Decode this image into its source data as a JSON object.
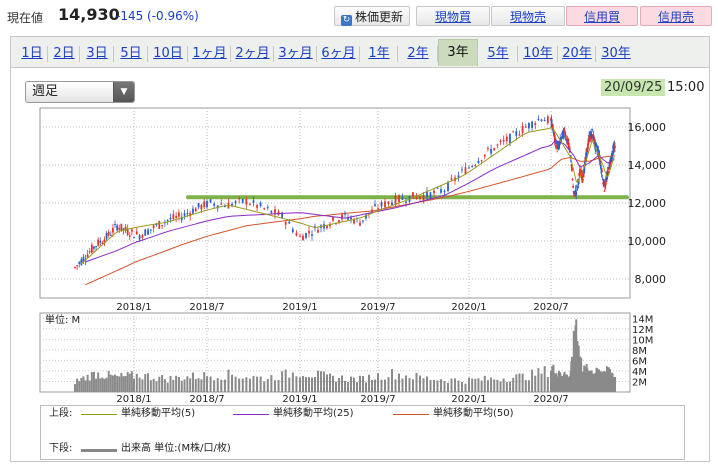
{
  "quote": {
    "price_label": "現在値",
    "price": "14,930",
    "change": "-145 (-0.96%)"
  },
  "buttons": {
    "update": "株価更新",
    "spot_buy": "現物買",
    "spot_sell": "現物売",
    "margin_buy": "信用買",
    "margin_sell": "信用売"
  },
  "period_tabs": [
    "1日",
    "2日",
    "3日",
    "5日",
    "10日",
    "1ヶ月",
    "2ヶ月",
    "3ヶ月",
    "6ヶ月",
    "1年",
    "2年",
    "3年",
    "5年",
    "10年",
    "20年",
    "30年"
  ],
  "active_tab": "3年",
  "interval_select": "週足",
  "timestamp": {
    "date": "20/09/25",
    "time": "15:00"
  },
  "colors": {
    "candle_up": "#e0342c",
    "candle_down": "#2a5fc8",
    "ma5": "#9a9a1a",
    "ma25": "#8a2bc8",
    "ma50": "#d0552a",
    "volume": "#8a8a8a",
    "support_line": "#7fb24a"
  },
  "chart_data": {
    "type": "candlestick",
    "x_tick_labels": [
      "2018/1",
      "2018/7",
      "2019/1",
      "2019/7",
      "2020/1",
      "2020/7"
    ],
    "price_axis": {
      "ticks": [
        8000,
        10000,
        12000,
        14000,
        16000
      ],
      "tick_labels": [
        "8,000",
        "10,000",
        "12,000",
        "14,000",
        "16,000"
      ],
      "range": [
        7000,
        17000
      ]
    },
    "volume_axis": {
      "unit_label": "単位: M",
      "tick_labels": [
        "14M",
        "12M",
        "10M",
        "8M",
        "6M",
        "4M",
        "2M"
      ],
      "ticks": [
        14,
        12,
        10,
        8,
        6,
        4,
        2
      ],
      "range": [
        0,
        15
      ]
    },
    "support_line_level": 12300,
    "price_path": [
      [
        0,
        8600
      ],
      [
        5,
        9200
      ],
      [
        10,
        9800
      ],
      [
        15,
        10200
      ],
      [
        20,
        10800
      ],
      [
        25,
        10500
      ],
      [
        30,
        10300
      ],
      [
        35,
        10700
      ],
      [
        40,
        11100
      ],
      [
        45,
        11300
      ],
      [
        50,
        11700
      ],
      [
        55,
        12000
      ],
      [
        60,
        11900
      ],
      [
        65,
        12100
      ],
      [
        70,
        11700
      ],
      [
        75,
        11300
      ],
      [
        80,
        10200
      ],
      [
        85,
        10600
      ],
      [
        90,
        11000
      ],
      [
        95,
        11300
      ],
      [
        100,
        11000
      ],
      [
        105,
        11700
      ],
      [
        110,
        12100
      ],
      [
        115,
        12300
      ],
      [
        120,
        12400
      ],
      [
        125,
        12700
      ],
      [
        130,
        13600
      ],
      [
        135,
        14300
      ],
      [
        140,
        14900
      ],
      [
        145,
        15400
      ],
      [
        150,
        16000
      ],
      [
        155,
        16500
      ],
      [
        160,
        16100
      ],
      [
        165,
        15200
      ],
      [
        170,
        14900
      ],
      [
        175,
        15400
      ],
      [
        180,
        15800
      ],
      [
        185,
        15200
      ],
      [
        190,
        14500
      ],
      [
        195,
        12400
      ],
      [
        200,
        12700
      ],
      [
        205,
        13600
      ],
      [
        210,
        13400
      ],
      [
        215,
        14400
      ],
      [
        220,
        15400
      ],
      [
        225,
        15700
      ],
      [
        230,
        15000
      ],
      [
        235,
        14700
      ],
      [
        240,
        13800
      ],
      [
        245,
        12800
      ],
      [
        250,
        13500
      ],
      [
        255,
        14300
      ],
      [
        260,
        14900
      ],
      [
        262,
        14930
      ]
    ],
    "ma5": [
      [
        3,
        8800
      ],
      [
        20,
        10500
      ],
      [
        40,
        11000
      ],
      [
        60,
        11900
      ],
      [
        75,
        11200
      ],
      [
        85,
        10700
      ],
      [
        100,
        11200
      ],
      [
        115,
        12200
      ],
      [
        130,
        13400
      ],
      [
        150,
        15700
      ],
      [
        160,
        16000
      ],
      [
        175,
        15200
      ],
      [
        190,
        14400
      ],
      [
        200,
        13000
      ],
      [
        210,
        13700
      ],
      [
        225,
        15300
      ],
      [
        240,
        14200
      ],
      [
        250,
        13300
      ],
      [
        262,
        14600
      ]
    ],
    "ma25": [
      [
        5,
        8900
      ],
      [
        20,
        9500
      ],
      [
        40,
        10500
      ],
      [
        60,
        11300
      ],
      [
        80,
        11500
      ],
      [
        95,
        11200
      ],
      [
        110,
        11700
      ],
      [
        125,
        12400
      ],
      [
        140,
        13800
      ],
      [
        155,
        14900
      ],
      [
        165,
        15300
      ],
      [
        180,
        15100
      ],
      [
        195,
        14500
      ],
      [
        205,
        13900
      ],
      [
        220,
        14100
      ],
      [
        235,
        14500
      ],
      [
        250,
        14100
      ],
      [
        262,
        14300
      ]
    ],
    "ma50": [
      [
        5,
        7700
      ],
      [
        25,
        8700
      ],
      [
        45,
        9800
      ],
      [
        65,
        10800
      ],
      [
        85,
        11300
      ],
      [
        105,
        11600
      ],
      [
        125,
        12300
      ],
      [
        145,
        13200
      ],
      [
        160,
        13900
      ],
      [
        175,
        14300
      ],
      [
        190,
        14400
      ],
      [
        205,
        14200
      ],
      [
        220,
        14200
      ],
      [
        240,
        14400
      ],
      [
        262,
        14500
      ]
    ],
    "volume_path": [
      [
        0,
        2
      ],
      [
        10,
        3.5
      ],
      [
        20,
        2.8
      ],
      [
        30,
        3.2
      ],
      [
        40,
        2.5
      ],
      [
        50,
        3.0
      ],
      [
        60,
        3.3
      ],
      [
        70,
        2.6
      ],
      [
        80,
        3.8
      ],
      [
        90,
        2.8
      ],
      [
        100,
        2.4
      ],
      [
        110,
        3.5
      ],
      [
        120,
        2.6
      ],
      [
        130,
        2.2
      ],
      [
        140,
        2.5
      ],
      [
        150,
        3.0
      ],
      [
        160,
        4.5
      ],
      [
        165,
        3.8
      ],
      [
        170,
        3.2
      ],
      [
        180,
        3.5
      ],
      [
        185,
        2.6
      ],
      [
        190,
        3.4
      ],
      [
        195,
        9
      ],
      [
        198,
        13.8
      ],
      [
        200,
        12
      ],
      [
        203,
        8
      ],
      [
        206,
        6
      ],
      [
        210,
        4
      ],
      [
        220,
        4.2
      ],
      [
        230,
        3.5
      ],
      [
        240,
        3.8
      ],
      [
        250,
        4.0
      ],
      [
        255,
        3.2
      ],
      [
        262,
        2.7
      ]
    ]
  },
  "legend": {
    "upper_label": "上段:",
    "lower_label": "下段:",
    "ma5": "単純移動平均(5)",
    "ma25": "単純移動平均(25)",
    "ma50": "単純移動平均(50)",
    "volume": "出来高 単位:(M株/口/枚)"
  }
}
